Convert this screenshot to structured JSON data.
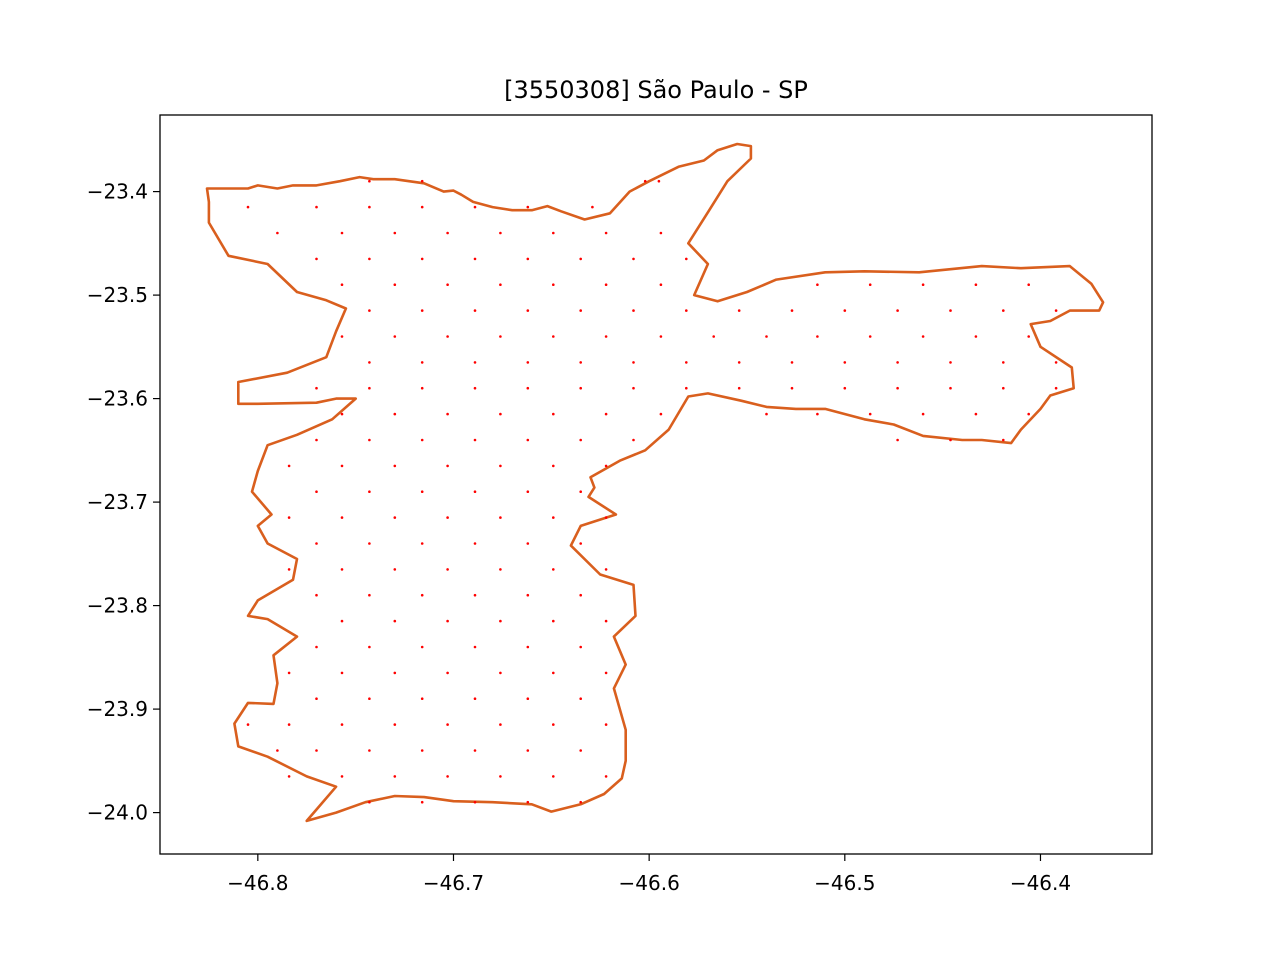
{
  "chart_data": {
    "type": "scatter",
    "title": "[3550308] São Paulo - SP",
    "xlabel": "",
    "ylabel": "",
    "xlim": [
      -46.85,
      -46.343
    ],
    "ylim": [
      -24.04,
      -23.326
    ],
    "x_ticks": [
      -46.8,
      -46.7,
      -46.6,
      -46.5,
      -46.4
    ],
    "x_tick_labels": [
      "−46.8",
      "−46.7",
      "−46.6",
      "−46.5",
      "−46.4"
    ],
    "y_ticks": [
      -23.4,
      -23.5,
      -23.6,
      -23.7,
      -23.8,
      -23.9,
      -24.0
    ],
    "y_tick_labels": [
      "−23.4",
      "−23.5",
      "−23.6",
      "−23.7",
      "−23.8",
      "−23.9",
      "−24.0"
    ],
    "grid": false,
    "colors": {
      "boundary": "#d95f1e",
      "points": "#ff0000",
      "axes": "#000000"
    },
    "boundary": [
      [
        -46.826,
        -23.397
      ],
      [
        -46.805,
        -23.397
      ],
      [
        -46.8,
        -23.394
      ],
      [
        -46.79,
        -23.397
      ],
      [
        -46.782,
        -23.394
      ],
      [
        -46.77,
        -23.394
      ],
      [
        -46.758,
        -23.39
      ],
      [
        -46.748,
        -23.386
      ],
      [
        -46.741,
        -23.388
      ],
      [
        -46.73,
        -23.388
      ],
      [
        -46.715,
        -23.392
      ],
      [
        -46.705,
        -23.4
      ],
      [
        -46.7,
        -23.399
      ],
      [
        -46.696,
        -23.403
      ],
      [
        -46.69,
        -23.41
      ],
      [
        -46.68,
        -23.415
      ],
      [
        -46.67,
        -23.418
      ],
      [
        -46.66,
        -23.418
      ],
      [
        -46.652,
        -23.414
      ],
      [
        -46.645,
        -23.419
      ],
      [
        -46.633,
        -23.427
      ],
      [
        -46.62,
        -23.421
      ],
      [
        -46.61,
        -23.4
      ],
      [
        -46.6,
        -23.39
      ],
      [
        -46.585,
        -23.376
      ],
      [
        -46.572,
        -23.37
      ],
      [
        -46.565,
        -23.36
      ],
      [
        -46.555,
        -23.354
      ],
      [
        -46.548,
        -23.356
      ],
      [
        -46.548,
        -23.368
      ],
      [
        -46.56,
        -23.39
      ],
      [
        -46.57,
        -23.42
      ],
      [
        -46.58,
        -23.45
      ],
      [
        -46.57,
        -23.47
      ],
      [
        -46.577,
        -23.5
      ],
      [
        -46.565,
        -23.506
      ],
      [
        -46.55,
        -23.497
      ],
      [
        -46.535,
        -23.485
      ],
      [
        -46.51,
        -23.478
      ],
      [
        -46.49,
        -23.477
      ],
      [
        -46.462,
        -23.478
      ],
      [
        -46.43,
        -23.472
      ],
      [
        -46.41,
        -23.474
      ],
      [
        -46.385,
        -23.472
      ],
      [
        -46.374,
        -23.489
      ],
      [
        -46.368,
        -23.507
      ],
      [
        -46.37,
        -23.515
      ],
      [
        -46.385,
        -23.515
      ],
      [
        -46.395,
        -23.525
      ],
      [
        -46.405,
        -23.528
      ],
      [
        -46.4,
        -23.55
      ],
      [
        -46.384,
        -23.57
      ],
      [
        -46.383,
        -23.59
      ],
      [
        -46.395,
        -23.597
      ],
      [
        -46.4,
        -23.61
      ],
      [
        -46.41,
        -23.63
      ],
      [
        -46.415,
        -23.643
      ],
      [
        -46.43,
        -23.64
      ],
      [
        -46.44,
        -23.64
      ],
      [
        -46.46,
        -23.636
      ],
      [
        -46.475,
        -23.625
      ],
      [
        -46.49,
        -23.62
      ],
      [
        -46.51,
        -23.61
      ],
      [
        -46.525,
        -23.61
      ],
      [
        -46.54,
        -23.608
      ],
      [
        -46.553,
        -23.602
      ],
      [
        -46.57,
        -23.595
      ],
      [
        -46.58,
        -23.598
      ],
      [
        -46.59,
        -23.63
      ],
      [
        -46.602,
        -23.65
      ],
      [
        -46.615,
        -23.66
      ],
      [
        -46.63,
        -23.676
      ],
      [
        -46.628,
        -23.686
      ],
      [
        -46.631,
        -23.695
      ],
      [
        -46.617,
        -23.712
      ],
      [
        -46.635,
        -23.723
      ],
      [
        -46.64,
        -23.742
      ],
      [
        -46.625,
        -23.77
      ],
      [
        -46.608,
        -23.78
      ],
      [
        -46.607,
        -23.81
      ],
      [
        -46.618,
        -23.83
      ],
      [
        -46.612,
        -23.857
      ],
      [
        -46.618,
        -23.88
      ],
      [
        -46.612,
        -23.92
      ],
      [
        -46.612,
        -23.95
      ],
      [
        -46.614,
        -23.967
      ],
      [
        -46.623,
        -23.982
      ],
      [
        -46.635,
        -23.992
      ],
      [
        -46.65,
        -23.999
      ],
      [
        -46.66,
        -23.992
      ],
      [
        -46.68,
        -23.99
      ],
      [
        -46.7,
        -23.989
      ],
      [
        -46.715,
        -23.985
      ],
      [
        -46.73,
        -23.984
      ],
      [
        -46.745,
        -23.99
      ],
      [
        -46.76,
        -24.0
      ],
      [
        -46.775,
        -24.008
      ],
      [
        -46.77,
        -23.997
      ],
      [
        -46.76,
        -23.975
      ],
      [
        -46.775,
        -23.965
      ],
      [
        -46.795,
        -23.946
      ],
      [
        -46.81,
        -23.936
      ],
      [
        -46.812,
        -23.914
      ],
      [
        -46.805,
        -23.894
      ],
      [
        -46.792,
        -23.895
      ],
      [
        -46.79,
        -23.875
      ],
      [
        -46.792,
        -23.848
      ],
      [
        -46.78,
        -23.83
      ],
      [
        -46.795,
        -23.813
      ],
      [
        -46.805,
        -23.81
      ],
      [
        -46.8,
        -23.795
      ],
      [
        -46.782,
        -23.775
      ],
      [
        -46.78,
        -23.755
      ],
      [
        -46.795,
        -23.74
      ],
      [
        -46.8,
        -23.723
      ],
      [
        -46.793,
        -23.712
      ],
      [
        -46.803,
        -23.69
      ],
      [
        -46.8,
        -23.67
      ],
      [
        -46.795,
        -23.645
      ],
      [
        -46.78,
        -23.635
      ],
      [
        -46.762,
        -23.62
      ],
      [
        -46.75,
        -23.6
      ],
      [
        -46.76,
        -23.6
      ],
      [
        -46.77,
        -23.604
      ],
      [
        -46.8,
        -23.605
      ],
      [
        -46.81,
        -23.605
      ],
      [
        -46.81,
        -23.584
      ],
      [
        -46.785,
        -23.575
      ],
      [
        -46.765,
        -23.56
      ],
      [
        -46.76,
        -23.535
      ],
      [
        -46.755,
        -23.513
      ],
      [
        -46.765,
        -23.505
      ],
      [
        -46.78,
        -23.497
      ],
      [
        -46.795,
        -23.47
      ],
      [
        -46.815,
        -23.462
      ],
      [
        -46.825,
        -23.43
      ],
      [
        -46.825,
        -23.41
      ],
      [
        -46.826,
        -23.397
      ]
    ],
    "points": [
      [
        -46.805,
        -23.415
      ],
      [
        -46.77,
        -23.415
      ],
      [
        -46.743,
        -23.415
      ],
      [
        -46.716,
        -23.415
      ],
      [
        -46.689,
        -23.415
      ],
      [
        -46.662,
        -23.415
      ],
      [
        -46.629,
        -23.415
      ],
      [
        -46.743,
        -23.39
      ],
      [
        -46.716,
        -23.39
      ],
      [
        -46.602,
        -23.39
      ],
      [
        -46.595,
        -23.39
      ],
      [
        -46.79,
        -23.44
      ],
      [
        -46.757,
        -23.44
      ],
      [
        -46.73,
        -23.44
      ],
      [
        -46.703,
        -23.44
      ],
      [
        -46.676,
        -23.44
      ],
      [
        -46.649,
        -23.44
      ],
      [
        -46.622,
        -23.44
      ],
      [
        -46.594,
        -23.44
      ],
      [
        -46.77,
        -23.465
      ],
      [
        -46.743,
        -23.465
      ],
      [
        -46.716,
        -23.465
      ],
      [
        -46.689,
        -23.465
      ],
      [
        -46.662,
        -23.465
      ],
      [
        -46.635,
        -23.465
      ],
      [
        -46.608,
        -23.465
      ],
      [
        -46.581,
        -23.465
      ],
      [
        -46.757,
        -23.49
      ],
      [
        -46.73,
        -23.49
      ],
      [
        -46.703,
        -23.49
      ],
      [
        -46.676,
        -23.49
      ],
      [
        -46.649,
        -23.49
      ],
      [
        -46.622,
        -23.49
      ],
      [
        -46.594,
        -23.49
      ],
      [
        -46.514,
        -23.49
      ],
      [
        -46.487,
        -23.49
      ],
      [
        -46.46,
        -23.49
      ],
      [
        -46.433,
        -23.49
      ],
      [
        -46.406,
        -23.49
      ],
      [
        -46.743,
        -23.515
      ],
      [
        -46.716,
        -23.515
      ],
      [
        -46.689,
        -23.515
      ],
      [
        -46.662,
        -23.515
      ],
      [
        -46.635,
        -23.515
      ],
      [
        -46.608,
        -23.515
      ],
      [
        -46.581,
        -23.515
      ],
      [
        -46.554,
        -23.515
      ],
      [
        -46.527,
        -23.515
      ],
      [
        -46.5,
        -23.515
      ],
      [
        -46.473,
        -23.515
      ],
      [
        -46.446,
        -23.515
      ],
      [
        -46.419,
        -23.515
      ],
      [
        -46.392,
        -23.515
      ],
      [
        -46.757,
        -23.54
      ],
      [
        -46.73,
        -23.54
      ],
      [
        -46.703,
        -23.54
      ],
      [
        -46.676,
        -23.54
      ],
      [
        -46.649,
        -23.54
      ],
      [
        -46.622,
        -23.54
      ],
      [
        -46.594,
        -23.54
      ],
      [
        -46.567,
        -23.54
      ],
      [
        -46.54,
        -23.54
      ],
      [
        -46.514,
        -23.54
      ],
      [
        -46.487,
        -23.54
      ],
      [
        -46.46,
        -23.54
      ],
      [
        -46.433,
        -23.54
      ],
      [
        -46.406,
        -23.54
      ],
      [
        -46.743,
        -23.565
      ],
      [
        -46.716,
        -23.565
      ],
      [
        -46.689,
        -23.565
      ],
      [
        -46.662,
        -23.565
      ],
      [
        -46.635,
        -23.565
      ],
      [
        -46.608,
        -23.565
      ],
      [
        -46.581,
        -23.565
      ],
      [
        -46.554,
        -23.565
      ],
      [
        -46.527,
        -23.565
      ],
      [
        -46.5,
        -23.565
      ],
      [
        -46.473,
        -23.565
      ],
      [
        -46.446,
        -23.565
      ],
      [
        -46.419,
        -23.565
      ],
      [
        -46.392,
        -23.565
      ],
      [
        -46.77,
        -23.59
      ],
      [
        -46.743,
        -23.59
      ],
      [
        -46.716,
        -23.59
      ],
      [
        -46.689,
        -23.59
      ],
      [
        -46.662,
        -23.59
      ],
      [
        -46.635,
        -23.59
      ],
      [
        -46.608,
        -23.59
      ],
      [
        -46.581,
        -23.59
      ],
      [
        -46.554,
        -23.59
      ],
      [
        -46.527,
        -23.59
      ],
      [
        -46.5,
        -23.59
      ],
      [
        -46.473,
        -23.59
      ],
      [
        -46.446,
        -23.59
      ],
      [
        -46.419,
        -23.59
      ],
      [
        -46.392,
        -23.59
      ],
      [
        -46.757,
        -23.615
      ],
      [
        -46.73,
        -23.615
      ],
      [
        -46.703,
        -23.615
      ],
      [
        -46.676,
        -23.615
      ],
      [
        -46.649,
        -23.615
      ],
      [
        -46.622,
        -23.615
      ],
      [
        -46.594,
        -23.615
      ],
      [
        -46.54,
        -23.615
      ],
      [
        -46.514,
        -23.615
      ],
      [
        -46.487,
        -23.615
      ],
      [
        -46.46,
        -23.615
      ],
      [
        -46.433,
        -23.615
      ],
      [
        -46.406,
        -23.615
      ],
      [
        -46.77,
        -23.64
      ],
      [
        -46.743,
        -23.64
      ],
      [
        -46.716,
        -23.64
      ],
      [
        -46.689,
        -23.64
      ],
      [
        -46.662,
        -23.64
      ],
      [
        -46.635,
        -23.64
      ],
      [
        -46.608,
        -23.64
      ],
      [
        -46.473,
        -23.64
      ],
      [
        -46.446,
        -23.64
      ],
      [
        -46.419,
        -23.64
      ],
      [
        -46.784,
        -23.665
      ],
      [
        -46.757,
        -23.665
      ],
      [
        -46.73,
        -23.665
      ],
      [
        -46.703,
        -23.665
      ],
      [
        -46.676,
        -23.665
      ],
      [
        -46.649,
        -23.665
      ],
      [
        -46.622,
        -23.665
      ],
      [
        -46.77,
        -23.69
      ],
      [
        -46.743,
        -23.69
      ],
      [
        -46.716,
        -23.69
      ],
      [
        -46.689,
        -23.69
      ],
      [
        -46.662,
        -23.69
      ],
      [
        -46.635,
        -23.69
      ],
      [
        -46.784,
        -23.715
      ],
      [
        -46.757,
        -23.715
      ],
      [
        -46.73,
        -23.715
      ],
      [
        -46.703,
        -23.715
      ],
      [
        -46.676,
        -23.715
      ],
      [
        -46.649,
        -23.715
      ],
      [
        -46.622,
        -23.715
      ],
      [
        -46.77,
        -23.74
      ],
      [
        -46.743,
        -23.74
      ],
      [
        -46.716,
        -23.74
      ],
      [
        -46.689,
        -23.74
      ],
      [
        -46.662,
        -23.74
      ],
      [
        -46.635,
        -23.74
      ],
      [
        -46.784,
        -23.765
      ],
      [
        -46.757,
        -23.765
      ],
      [
        -46.73,
        -23.765
      ],
      [
        -46.703,
        -23.765
      ],
      [
        -46.676,
        -23.765
      ],
      [
        -46.649,
        -23.765
      ],
      [
        -46.622,
        -23.765
      ],
      [
        -46.77,
        -23.79
      ],
      [
        -46.743,
        -23.79
      ],
      [
        -46.716,
        -23.79
      ],
      [
        -46.689,
        -23.79
      ],
      [
        -46.662,
        -23.79
      ],
      [
        -46.635,
        -23.79
      ],
      [
        -46.757,
        -23.815
      ],
      [
        -46.73,
        -23.815
      ],
      [
        -46.703,
        -23.815
      ],
      [
        -46.676,
        -23.815
      ],
      [
        -46.649,
        -23.815
      ],
      [
        -46.622,
        -23.815
      ],
      [
        -46.77,
        -23.84
      ],
      [
        -46.743,
        -23.84
      ],
      [
        -46.716,
        -23.84
      ],
      [
        -46.689,
        -23.84
      ],
      [
        -46.662,
        -23.84
      ],
      [
        -46.635,
        -23.84
      ],
      [
        -46.784,
        -23.865
      ],
      [
        -46.757,
        -23.865
      ],
      [
        -46.73,
        -23.865
      ],
      [
        -46.703,
        -23.865
      ],
      [
        -46.676,
        -23.865
      ],
      [
        -46.649,
        -23.865
      ],
      [
        -46.622,
        -23.865
      ],
      [
        -46.77,
        -23.89
      ],
      [
        -46.743,
        -23.89
      ],
      [
        -46.716,
        -23.89
      ],
      [
        -46.689,
        -23.89
      ],
      [
        -46.662,
        -23.89
      ],
      [
        -46.635,
        -23.89
      ],
      [
        -46.805,
        -23.915
      ],
      [
        -46.784,
        -23.915
      ],
      [
        -46.757,
        -23.915
      ],
      [
        -46.73,
        -23.915
      ],
      [
        -46.703,
        -23.915
      ],
      [
        -46.676,
        -23.915
      ],
      [
        -46.649,
        -23.915
      ],
      [
        -46.622,
        -23.915
      ],
      [
        -46.79,
        -23.94
      ],
      [
        -46.77,
        -23.94
      ],
      [
        -46.743,
        -23.94
      ],
      [
        -46.716,
        -23.94
      ],
      [
        -46.689,
        -23.94
      ],
      [
        -46.662,
        -23.94
      ],
      [
        -46.635,
        -23.94
      ],
      [
        -46.784,
        -23.965
      ],
      [
        -46.757,
        -23.965
      ],
      [
        -46.73,
        -23.965
      ],
      [
        -46.703,
        -23.965
      ],
      [
        -46.676,
        -23.965
      ],
      [
        -46.649,
        -23.965
      ],
      [
        -46.622,
        -23.965
      ],
      [
        -46.743,
        -23.99
      ],
      [
        -46.716,
        -23.99
      ],
      [
        -46.689,
        -23.99
      ],
      [
        -46.662,
        -23.99
      ],
      [
        -46.635,
        -23.99
      ]
    ]
  }
}
